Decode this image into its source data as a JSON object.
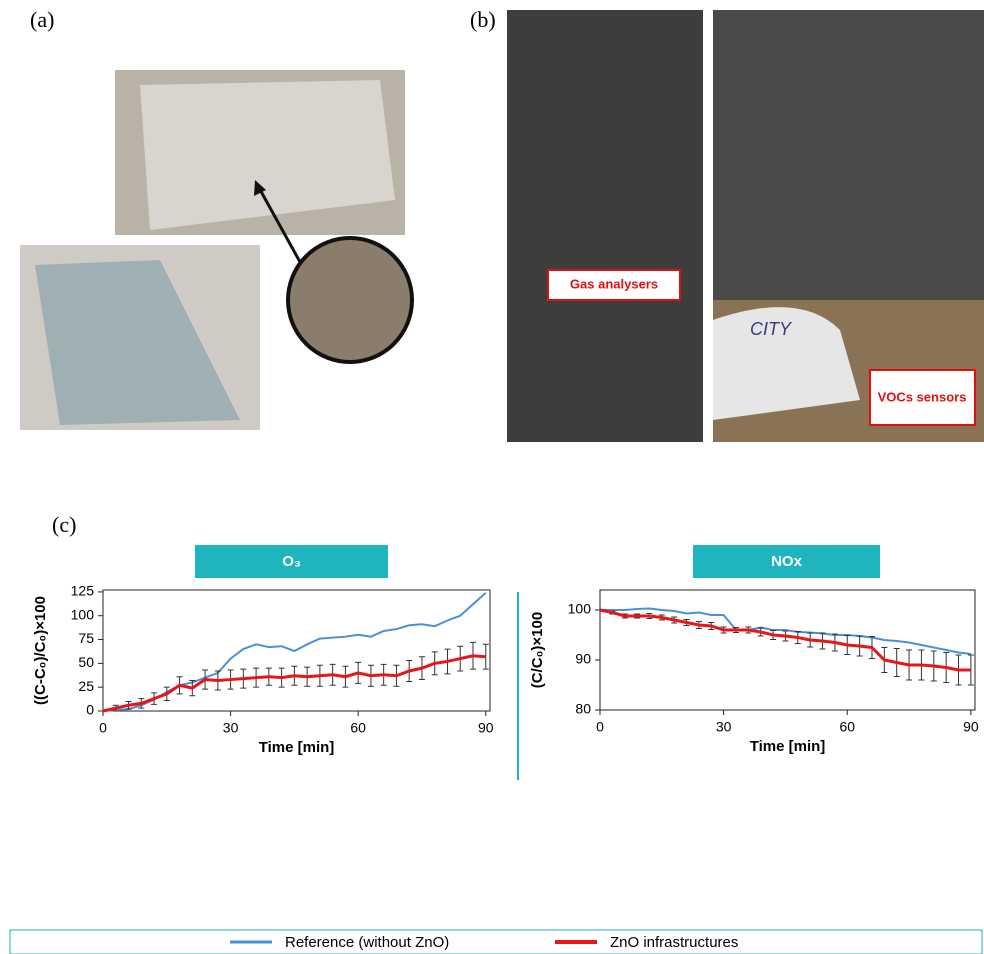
{
  "panels": {
    "a": "(a)",
    "b": "(b)",
    "c": "(c)"
  },
  "annotations": {
    "gas": "Gas analysers",
    "vocs": "VOCs sensors",
    "car": "CITY"
  },
  "chart_data": [
    {
      "type": "line",
      "title": "O₃",
      "xlabel": "Time [min]",
      "ylabel": "((C-C₀)/C₀)×100",
      "x": [
        0,
        3,
        6,
        9,
        12,
        15,
        18,
        21,
        24,
        27,
        30,
        33,
        36,
        39,
        42,
        45,
        48,
        51,
        54,
        57,
        60,
        63,
        66,
        69,
        72,
        75,
        78,
        81,
        84,
        87,
        90
      ],
      "xlim": [
        0,
        91
      ],
      "ylim": [
        0,
        127
      ],
      "xticks": [
        0,
        30,
        60,
        90
      ],
      "yticks": [
        0,
        25,
        50,
        75,
        100,
        125
      ],
      "series": [
        {
          "name": "Reference  (without ZnO)",
          "color": "#4a90d9",
          "values": [
            0,
            1,
            2,
            6,
            12,
            20,
            27,
            30,
            35,
            40,
            55,
            65,
            70,
            67,
            68,
            63,
            70,
            76,
            77,
            78,
            80,
            78,
            84,
            86,
            90,
            91,
            89,
            95,
            100,
            112,
            124
          ]
        },
        {
          "name": "ZnO infrastructures",
          "color": "#e8151b",
          "values": [
            0,
            3,
            6,
            8,
            13,
            18,
            27,
            24,
            33,
            32,
            33,
            34,
            35,
            36,
            35,
            37,
            36,
            37,
            38,
            36,
            40,
            37,
            38,
            37,
            42,
            45,
            50,
            52,
            55,
            58,
            57
          ],
          "errors": [
            0,
            3,
            4,
            5,
            6,
            7,
            9,
            8,
            10,
            10,
            10,
            10,
            10,
            9,
            10,
            10,
            10,
            11,
            11,
            11,
            11,
            11,
            11,
            11,
            11,
            12,
            12,
            13,
            13,
            14,
            13
          ]
        }
      ]
    },
    {
      "type": "line",
      "title": "NOx",
      "xlabel": "Time [min]",
      "ylabel": "(C/C₀)×100",
      "x": [
        0,
        3,
        6,
        9,
        12,
        15,
        18,
        21,
        24,
        27,
        30,
        33,
        36,
        39,
        42,
        45,
        48,
        51,
        54,
        57,
        60,
        63,
        66,
        69,
        72,
        75,
        78,
        81,
        84,
        87,
        90
      ],
      "xlim": [
        0,
        91
      ],
      "ylim": [
        80,
        104
      ],
      "xticks": [
        0,
        30,
        60,
        90
      ],
      "yticks": [
        80,
        90,
        100
      ],
      "series": [
        {
          "name": "Reference  (without ZnO)",
          "color": "#4a90d9",
          "values": [
            100,
            100,
            100,
            100.2,
            100.3,
            100,
            99.8,
            99.3,
            99.5,
            99,
            99,
            96,
            96,
            96.5,
            96,
            96,
            95.6,
            95.5,
            95.3,
            95,
            95,
            94.8,
            94.5,
            94,
            93.8,
            93.5,
            93,
            92.5,
            92,
            91.5,
            91.2
          ]
        },
        {
          "name": "ZnO infrastructures",
          "color": "#e8151b",
          "values": [
            100,
            99.5,
            98.8,
            98.8,
            98.8,
            98.5,
            98,
            97.5,
            97,
            96.8,
            96,
            96,
            96,
            95.6,
            95,
            94.8,
            94.5,
            94,
            93.8,
            93.5,
            93,
            92.8,
            92.5,
            90,
            89.5,
            89,
            89,
            88.8,
            88.5,
            88,
            88
          ],
          "errors": [
            0,
            0.3,
            0.4,
            0.4,
            0.5,
            0.5,
            0.6,
            0.6,
            0.7,
            0.7,
            0.6,
            0.5,
            0.6,
            0.8,
            0.9,
            1,
            1.2,
            1.4,
            1.6,
            1.7,
            1.9,
            2,
            2.2,
            2.5,
            2.8,
            3,
            3,
            3,
            3,
            3,
            3
          ]
        }
      ]
    }
  ]
}
